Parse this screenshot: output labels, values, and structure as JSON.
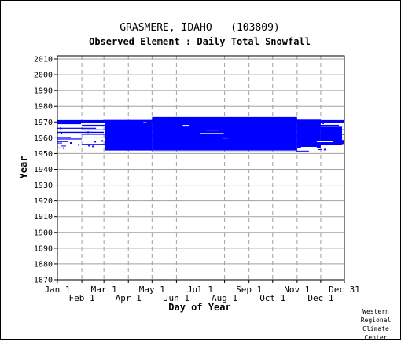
{
  "chart_data": {
    "type": "heatmap",
    "title": "GRASMERE, IDAHO   (103809)",
    "subtitle": "Observed Element : Daily Total Snowfall",
    "xlabel": "Day of Year",
    "ylabel": "Year",
    "xlim": [
      1,
      365
    ],
    "ylim": [
      1870,
      2012
    ],
    "y_ticks": [
      1870,
      1880,
      1890,
      1900,
      1910,
      1920,
      1930,
      1940,
      1950,
      1960,
      1970,
      1980,
      1990,
      2000,
      2010
    ],
    "x_ticks_top_row": [
      {
        "label": "Jan 1",
        "day": 1
      },
      {
        "label": "Mar 1",
        "day": 60
      },
      {
        "label": "May 1",
        "day": 121
      },
      {
        "label": "Jul 1",
        "day": 182
      },
      {
        "label": "Sep 1",
        "day": 244
      },
      {
        "label": "Nov 1",
        "day": 305
      },
      {
        "label": "Dec 31",
        "day": 365
      }
    ],
    "x_ticks_bottom_row": [
      {
        "label": "Feb 1",
        "day": 32
      },
      {
        "label": "Apr 1",
        "day": 91
      },
      {
        "label": "Jun 1",
        "day": 152
      },
      {
        "label": "Aug 1",
        "day": 213
      },
      {
        "label": "Oct 1",
        "day": 274
      },
      {
        "label": "Dec 1",
        "day": 335
      }
    ],
    "grid": true,
    "series_color": "#0000ff",
    "observed_spans": [
      {
        "year_from": 1969.5,
        "year_to": 1971.2,
        "day_from": 1,
        "day_to": 365
      },
      {
        "year_from": 1968.6,
        "year_to": 1969.2,
        "day_from": 1,
        "day_to": 31
      },
      {
        "year_from": 1967.6,
        "year_to": 1968.2,
        "day_from": 32,
        "day_to": 358
      },
      {
        "year_from": 1965.7,
        "year_to": 1966.3,
        "day_from": 1,
        "day_to": 50
      },
      {
        "year_from": 1964.7,
        "year_to": 1965.3,
        "day_from": 32,
        "day_to": 365
      },
      {
        "year_from": 1963.1,
        "year_to": 1963.8,
        "day_from": 1,
        "day_to": 60
      },
      {
        "year_from": 1961.9,
        "year_to": 1962.5,
        "day_from": 32,
        "day_to": 365
      },
      {
        "year_from": 1959.9,
        "year_to": 1960.5,
        "day_from": 1,
        "day_to": 18
      },
      {
        "year_from": 1958.9,
        "year_to": 1959.5,
        "day_from": 1,
        "day_to": 32
      },
      {
        "year_from": 1957.4,
        "year_to": 1957.8,
        "day_from": 1,
        "day_to": 14
      },
      {
        "year_from": 1956.5,
        "year_to": 1956.9,
        "day_from": 1,
        "day_to": 7
      },
      {
        "year_from": 1955.6,
        "year_to": 1956.1,
        "day_from": 32,
        "day_to": 62
      },
      {
        "year_from": 1954.6,
        "year_to": 1955.0,
        "day_from": 5,
        "day_to": 12
      },
      {
        "year_from": 1953.4,
        "year_to": 1953.8,
        "day_from": 1,
        "day_to": 5
      },
      {
        "year_from": 1951.9,
        "year_to": 1973.2,
        "day_from": 121,
        "day_to": 305
      },
      {
        "year_from": 1951.9,
        "year_to": 1971.3,
        "day_from": 61,
        "day_to": 121
      },
      {
        "year_from": 1953.5,
        "year_to": 1971.5,
        "day_from": 305,
        "day_to": 335
      },
      {
        "year_from": 1955.5,
        "year_to": 1967.5,
        "day_from": 335,
        "day_to": 362
      },
      {
        "year_from": 1956.0,
        "year_to": 1958.6,
        "day_from": 335,
        "day_to": 365
      },
      {
        "year_from": 1950.8,
        "year_to": 1951.3,
        "day_from": 121,
        "day_to": 305
      },
      {
        "year_from": 1951.4,
        "year_to": 1951.8,
        "day_from": 304,
        "day_to": 320
      },
      {
        "year_from": 1952.3,
        "year_to": 1952.7,
        "day_from": 331,
        "day_to": 337
      }
    ],
    "gaps": [
      {
        "year_from": 1969.6,
        "year_to": 1969.9,
        "day_from": 110,
        "day_to": 114
      },
      {
        "year_from": 1964.7,
        "year_to": 1965.1,
        "day_from": 190,
        "day_to": 205
      },
      {
        "year_from": 1962.6,
        "year_to": 1963.0,
        "day_from": 182,
        "day_to": 212
      },
      {
        "year_from": 1959.6,
        "year_to": 1960.2,
        "day_from": 211,
        "day_to": 217
      },
      {
        "year_from": 1957.3,
        "year_to": 1957.7,
        "day_from": 330,
        "day_to": 350
      },
      {
        "year_from": 1967.7,
        "year_to": 1968.1,
        "day_from": 160,
        "day_to": 168
      },
      {
        "year_from": 1964.8,
        "year_to": 1965.2,
        "day_from": 340,
        "day_to": 342
      },
      {
        "year_from": 1953.8,
        "year_to": 1954.2,
        "day_from": 310,
        "day_to": 330
      }
    ],
    "specks": [
      {
        "year": 1966.0,
        "day": 5
      },
      {
        "year": 1963.5,
        "day": 40
      },
      {
        "year": 1956.7,
        "day": 18
      },
      {
        "year": 1957.5,
        "day": 49
      },
      {
        "year": 1955.0,
        "day": 41
      },
      {
        "year": 1956.3,
        "day": 68
      },
      {
        "year": 1958.0,
        "day": 58
      },
      {
        "year": 1954.5,
        "day": 46
      },
      {
        "year": 1969.2,
        "day": 338
      },
      {
        "year": 1970.4,
        "day": 344
      },
      {
        "year": 1952.5,
        "day": 340
      },
      {
        "year": 1953.4,
        "day": 9
      },
      {
        "year": 1955.5,
        "day": 28
      },
      {
        "year": 1962.7,
        "day": 6
      }
    ]
  },
  "credit": [
    "Western",
    "Regional",
    "Climate",
    "Center"
  ]
}
